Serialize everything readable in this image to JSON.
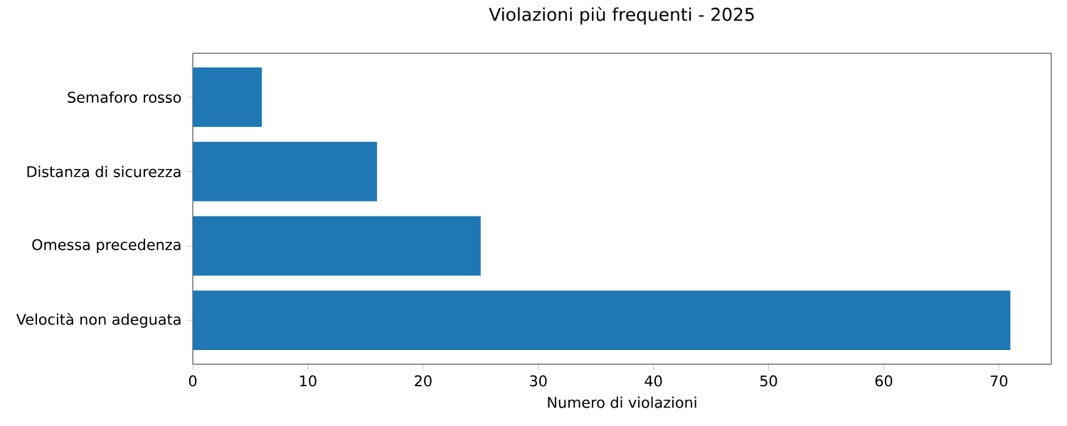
{
  "chart_data": {
    "type": "bar",
    "orientation": "horizontal",
    "title": "Violazioni più frequenti - 2025",
    "xlabel": "Numero di violazioni",
    "categories": [
      "Semaforo rosso",
      "Distanza di sicurezza",
      "Omessa precedenza",
      "Velocità non adeguata"
    ],
    "values": [
      6,
      16,
      25,
      71
    ],
    "color": "#1f77b4",
    "xlim": [
      0,
      74.55
    ],
    "xticks": [
      0,
      10,
      20,
      30,
      40,
      50,
      60,
      70
    ],
    "grid": false
  }
}
